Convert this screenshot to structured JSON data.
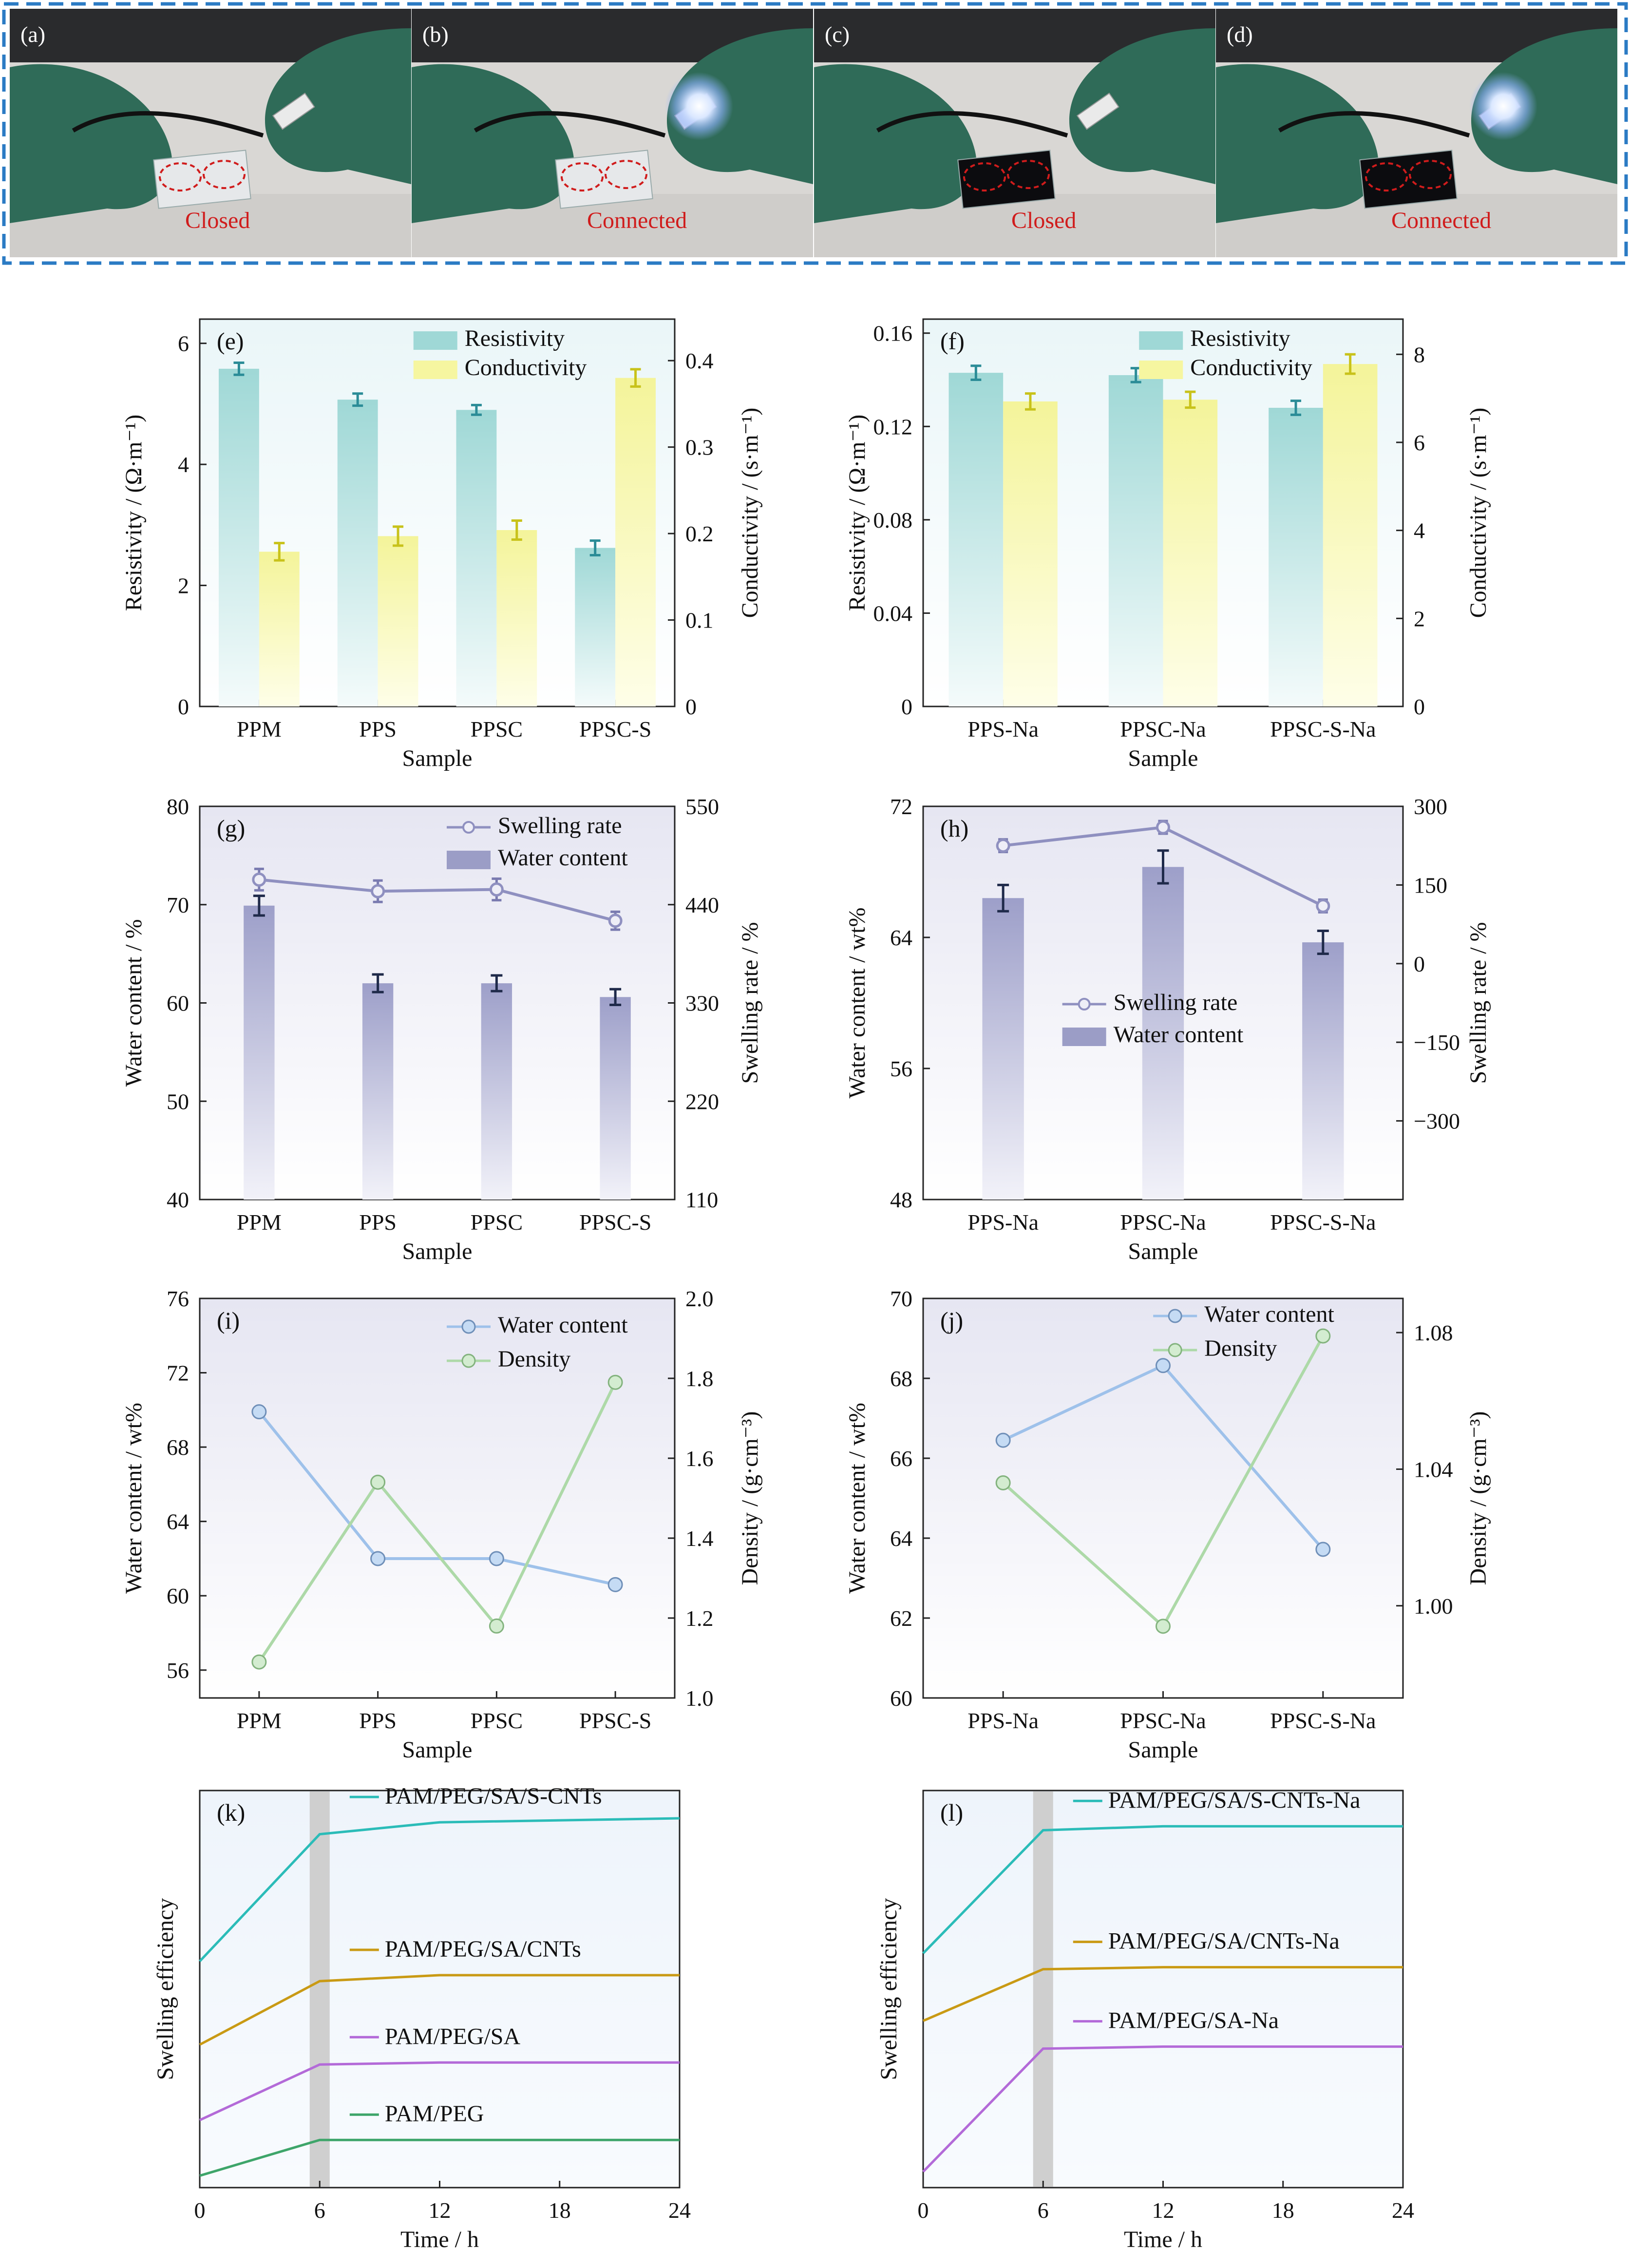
{
  "photos": [
    {
      "letter": "(a)",
      "label": "Closed",
      "led": "off",
      "material": "clear"
    },
    {
      "letter": "(b)",
      "label": "Connected",
      "led": "on",
      "material": "clear"
    },
    {
      "letter": "(c)",
      "label": "Closed",
      "led": "off",
      "material": "black"
    },
    {
      "letter": "(d)",
      "label": "Connected",
      "led": "on",
      "material": "black"
    }
  ],
  "colors": {
    "frame": "#2b7bc4",
    "label_red": "#d01c1c",
    "glove": "#2f6b58",
    "teal": "#9fd8d6",
    "yellow": "#f6f6a0",
    "purple": "#9b9dc6",
    "purple_line": "#8f90c0",
    "light_blue": "#a9c8ec",
    "light_green": "#b5dfb1",
    "c_teal": "#2bbcb8",
    "c_gold": "#c99a14",
    "c_violet": "#b36ad8",
    "c_green": "#3ea56a",
    "panel_bg": "#f3f7fc",
    "gray_band": "#cfcfcf"
  },
  "chart_data": [
    {
      "panel": "(e)",
      "type": "bar",
      "categories": [
        "PPM",
        "PPS",
        "PPSC",
        "PPSC-S"
      ],
      "xlabel": "Sample",
      "ylabel": "Resistivity / (Ω·m⁻¹)",
      "y2label": "Conductivity / (s·m⁻¹)",
      "ylim": [
        0,
        6.4
      ],
      "yticks": [
        "0",
        "2",
        "4",
        "6"
      ],
      "y2lim": [
        0,
        0.448
      ],
      "y2ticks": [
        "0",
        "0.1",
        "0.2",
        "0.3",
        "0.4"
      ],
      "series": [
        {
          "name": "Resistivity",
          "axis": "left",
          "values": [
            5.58,
            5.07,
            4.9,
            2.62
          ],
          "errors": [
            0.1,
            0.1,
            0.08,
            0.12
          ]
        },
        {
          "name": "Conductivity",
          "axis": "right",
          "values": [
            0.179,
            0.197,
            0.204,
            0.38
          ],
          "errors": [
            0.01,
            0.011,
            0.011,
            0.01
          ]
        }
      ],
      "legend": "top-right"
    },
    {
      "panel": "(f)",
      "type": "bar",
      "categories": [
        "PPS-Na",
        "PPSC-Na",
        "PPSC-S-Na"
      ],
      "xlabel": "Sample",
      "ylabel": "Resistivity / (Ω·m⁻¹)",
      "y2label": "Conductivity / (s·m⁻¹)",
      "ylim": [
        0,
        0.166
      ],
      "yticks": [
        "0",
        "0.04",
        "0.08",
        "0.12",
        "0.16"
      ],
      "y2lim": [
        0,
        8.8
      ],
      "y2ticks": [
        "0",
        "2",
        "4",
        "6",
        "8"
      ],
      "series": [
        {
          "name": "Resistivity",
          "axis": "left",
          "values": [
            0.143,
            0.142,
            0.128
          ],
          "errors": [
            0.003,
            0.003,
            0.003
          ]
        },
        {
          "name": "Conductivity",
          "axis": "right",
          "values": [
            6.93,
            6.97,
            7.78
          ],
          "errors": [
            0.18,
            0.18,
            0.22
          ]
        }
      ],
      "legend": "top-right"
    },
    {
      "panel": "(g)",
      "type": "bar+line",
      "categories": [
        "PPM",
        "PPS",
        "PPSC",
        "PPSC-S"
      ],
      "xlabel": "Sample",
      "ylabel": "Water content / %",
      "y2label": "Swelling rate / %",
      "ylim": [
        40,
        80
      ],
      "yticks": [
        "40",
        "50",
        "60",
        "70",
        "80"
      ],
      "y2lim": [
        110,
        550
      ],
      "y2ticks": [
        "110",
        "220",
        "330",
        "440",
        "550"
      ],
      "series": [
        {
          "name": "Swelling rate",
          "kind": "line",
          "axis": "right",
          "values": [
            468,
            455,
            457,
            422
          ],
          "errors": [
            12,
            12,
            12,
            10
          ]
        },
        {
          "name": "Water content",
          "kind": "bar",
          "axis": "left",
          "values": [
            69.9,
            62.0,
            62.0,
            60.6
          ],
          "errors": [
            1.0,
            0.9,
            0.8,
            0.8
          ]
        }
      ],
      "legend": "top-right"
    },
    {
      "panel": "(h)",
      "type": "bar+line",
      "categories": [
        "PPS-Na",
        "PPSC-Na",
        "PPSC-S-Na"
      ],
      "xlabel": "Sample",
      "ylabel": "Water content / wt%",
      "y2label": "Swelling rate / %",
      "ylim": [
        48,
        72
      ],
      "yticks": [
        "48",
        "56",
        "64",
        "72"
      ],
      "y2lim": [
        -450,
        300
      ],
      "y2ticks": [
        "−300",
        "−150",
        "0",
        "150",
        "300"
      ],
      "series": [
        {
          "name": "Swelling rate",
          "kind": "line",
          "axis": "right",
          "values": [
            225,
            260,
            110
          ],
          "errors": [
            12,
            12,
            12
          ]
        },
        {
          "name": "Water content",
          "kind": "bar",
          "axis": "left",
          "values": [
            66.4,
            68.3,
            63.7
          ],
          "errors": [
            0.8,
            1.0,
            0.7
          ]
        }
      ],
      "legend": "center-right"
    },
    {
      "panel": "(i)",
      "type": "line",
      "categories": [
        "PPM",
        "PPS",
        "PPSC",
        "PPSC-S"
      ],
      "xlabel": "Sample",
      "ylabel": "Water content / wt%",
      "y2label": "Density / (g·cm⁻³)",
      "ylim": [
        54.5,
        76
      ],
      "yticks": [
        "56",
        "60",
        "64",
        "68",
        "72",
        "76"
      ],
      "y2lim": [
        1.0,
        2.0
      ],
      "y2ticks": [
        "1.0",
        "1.2",
        "1.4",
        "1.6",
        "1.8",
        "2.0"
      ],
      "series": [
        {
          "name": "Water content",
          "axis": "left",
          "values": [
            69.9,
            62.0,
            62.0,
            60.6
          ]
        },
        {
          "name": "Density",
          "axis": "right",
          "values": [
            1.09,
            1.54,
            1.18,
            1.79
          ]
        }
      ],
      "legend": "top-right"
    },
    {
      "panel": "(j)",
      "type": "line",
      "categories": [
        "PPS-Na",
        "PPSC-Na",
        "PPSC-S-Na"
      ],
      "xlabel": "Sample",
      "ylabel": "Water content / wt%",
      "y2label": "Density / (g·cm⁻³)",
      "ylim": [
        60,
        70
      ],
      "yticks": [
        "60",
        "62",
        "64",
        "66",
        "68",
        "70"
      ],
      "y2lim": [
        0.973,
        1.09
      ],
      "y2ticks": [
        "1.00",
        "1.04",
        "1.08"
      ],
      "series": [
        {
          "name": "Water content",
          "axis": "left",
          "values": [
            66.45,
            68.32,
            63.72
          ]
        },
        {
          "name": "Density",
          "axis": "right",
          "values": [
            1.036,
            0.994,
            1.079
          ]
        }
      ],
      "legend": "top-right"
    },
    {
      "panel": "(k)",
      "type": "line",
      "xlabel": "Time / h",
      "ylabel": "Swelling efficiency",
      "xlim": [
        0,
        24
      ],
      "xticks": [
        "0",
        "6",
        "12",
        "18",
        "24"
      ],
      "highlight_band": [
        5.5,
        6.5
      ],
      "series": [
        {
          "name": "PAM/PEG/SA/S-CNTs",
          "x": [
            0,
            6,
            12,
            24
          ],
          "y": [
            0.57,
            0.89,
            0.92,
            0.93
          ]
        },
        {
          "name": "PAM/PEG/SA/CNTs",
          "x": [
            0,
            6,
            12,
            24
          ],
          "y": [
            0.36,
            0.52,
            0.535,
            0.535
          ]
        },
        {
          "name": "PAM/PEG/SA",
          "x": [
            0,
            6,
            12,
            24
          ],
          "y": [
            0.17,
            0.31,
            0.315,
            0.315
          ]
        },
        {
          "name": "PAM/PEG",
          "x": [
            0,
            6,
            12,
            24
          ],
          "y": [
            0.03,
            0.12,
            0.12,
            0.12
          ]
        }
      ]
    },
    {
      "panel": "(l)",
      "type": "line",
      "xlabel": "Time / h",
      "ylabel": "Swelling efficiency",
      "xlim": [
        0,
        24
      ],
      "xticks": [
        "0",
        "6",
        "12",
        "18",
        "24"
      ],
      "highlight_band": [
        5.5,
        6.5
      ],
      "series": [
        {
          "name": "PAM/PEG/SA/S-CNTs-Na",
          "x": [
            0,
            6,
            12,
            24
          ],
          "y": [
            0.59,
            0.9,
            0.91,
            0.91
          ]
        },
        {
          "name": "PAM/PEG/SA/CNTs-Na",
          "x": [
            0,
            6,
            12,
            24
          ],
          "y": [
            0.42,
            0.55,
            0.555,
            0.555
          ]
        },
        {
          "name": "PAM/PEG/SA-Na",
          "x": [
            0,
            6,
            12,
            24
          ],
          "y": [
            0.04,
            0.35,
            0.355,
            0.355
          ]
        }
      ]
    }
  ]
}
